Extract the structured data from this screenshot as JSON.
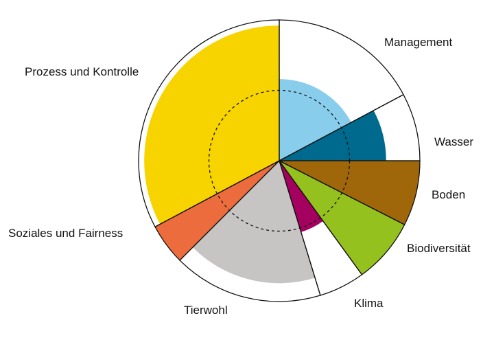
{
  "chart_data": {
    "type": "polar-area",
    "title": "",
    "outer_max": 1.0,
    "reference_ring": 0.5,
    "colors": {
      "Management": "#89cdec",
      "Wasser": "#006a8e",
      "Boden": "#a0660a",
      "Biodiversität": "#95c11f",
      "Klima": "#a4005f",
      "Tierwohl": "#c6c5c4",
      "Soziales und Fairness": "#ec6c3d",
      "Prozess und Kontrolle": "#f7d300"
    },
    "segments": [
      {
        "label": "Management",
        "start_deg": 0,
        "end_deg": 62,
        "max": 1.0,
        "value": 0.58
      },
      {
        "label": "Wasser",
        "start_deg": 62,
        "end_deg": 90,
        "max": 1.0,
        "value": 0.76
      },
      {
        "label": "Boden",
        "start_deg": 90,
        "end_deg": 117,
        "max": 1.0,
        "value": 1.0
      },
      {
        "label": "Biodiversität",
        "start_deg": 117,
        "end_deg": 144,
        "max": 1.0,
        "value": 1.0
      },
      {
        "label": "Klima",
        "start_deg": 144,
        "end_deg": 163,
        "max": 1.0,
        "value": 0.53
      },
      {
        "label": "Tierwohl",
        "start_deg": 163,
        "end_deg": 225,
        "max": 1.0,
        "value": 0.87
      },
      {
        "label": "Soziales und Fairness",
        "start_deg": 225,
        "end_deg": 242,
        "max": 1.0,
        "value": 1.0
      },
      {
        "label": "Prozess und Kontrolle",
        "start_deg": 242,
        "end_deg": 360,
        "max": 1.0,
        "value": 0.96
      }
    ]
  }
}
